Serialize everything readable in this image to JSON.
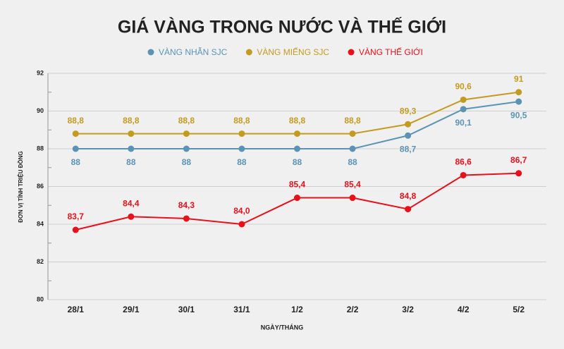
{
  "chart_data": {
    "type": "line",
    "title": "GIÁ VÀNG TRONG NƯỚC VÀ THẾ GIỚI",
    "xlabel": "NGÀY/THÁNG",
    "ylabel": "ĐƠN VỊ TÍNH TRIỆU ĐỒNG",
    "categories": [
      "28/1",
      "29/1",
      "30/1",
      "31/1",
      "1/2",
      "2/2",
      "3/2",
      "4/2",
      "5/2"
    ],
    "ylim": [
      80,
      92
    ],
    "yticks": [
      80,
      82,
      84,
      86,
      88,
      90,
      92
    ],
    "grid": true,
    "legend": "top",
    "series": [
      {
        "name": "VÀNG NHẪN SJC",
        "color": "#5b93b5",
        "values": [
          88,
          88,
          88,
          88,
          88,
          88,
          88.7,
          90.1,
          90.5
        ],
        "value_labels": [
          "88",
          "88",
          "88",
          "88",
          "88",
          "88",
          "88,7",
          "90,1",
          "90,5"
        ]
      },
      {
        "name": "VÀNG MIẾNG SJC",
        "color": "#c49a1f",
        "values": [
          88.8,
          88.8,
          88.8,
          88.8,
          88.8,
          88.8,
          89.3,
          90.6,
          91
        ],
        "value_labels": [
          "88,8",
          "88,8",
          "88,8",
          "88,8",
          "88,8",
          "88,8",
          "89,3",
          "90,6",
          "91"
        ]
      },
      {
        "name": "VÀNG THẾ GIỚI",
        "color": "#e8101a",
        "values": [
          83.7,
          84.4,
          84.3,
          84.0,
          85.4,
          85.4,
          84.8,
          86.6,
          86.7
        ],
        "value_labels": [
          "83,7",
          "84,4",
          "84,3",
          "84,0",
          "85,4",
          "85,4",
          "84,8",
          "86,6",
          "86,7"
        ]
      }
    ]
  }
}
